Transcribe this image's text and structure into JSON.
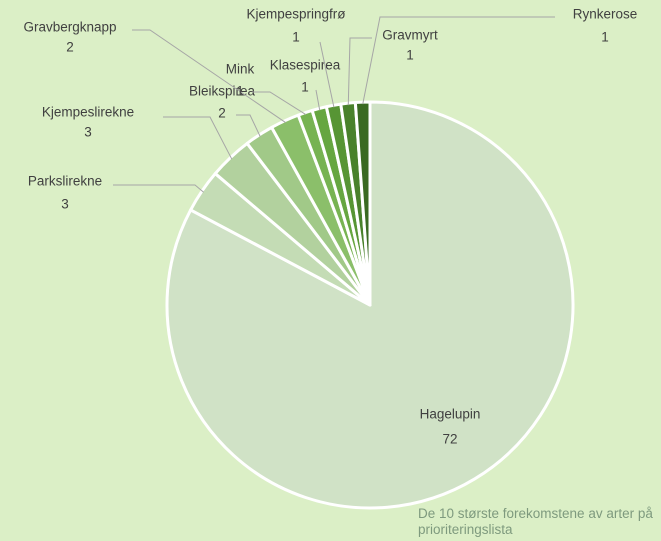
{
  "chart_data": {
    "type": "pie",
    "categories": [
      "Hagelupin",
      "Parkslirekne",
      "Kjempeslirekne",
      "Bleikspirea",
      "Gravbergknapp",
      "Mink",
      "Klasespirea",
      "Kjempespringfrø",
      "Gravmyrt",
      "Rynkerose"
    ],
    "values": [
      72,
      3,
      3,
      2,
      2,
      1,
      1,
      1,
      1,
      1
    ],
    "colors": [
      "#d0e2c6",
      "#c4dcb5",
      "#b2d19e",
      "#a1c988",
      "#8bbf6a",
      "#77b352",
      "#66a640",
      "#579534",
      "#49812b",
      "#3a6a22"
    ],
    "annotation": "De 10 største forekomstene av arter på prioriteringslista"
  }
}
